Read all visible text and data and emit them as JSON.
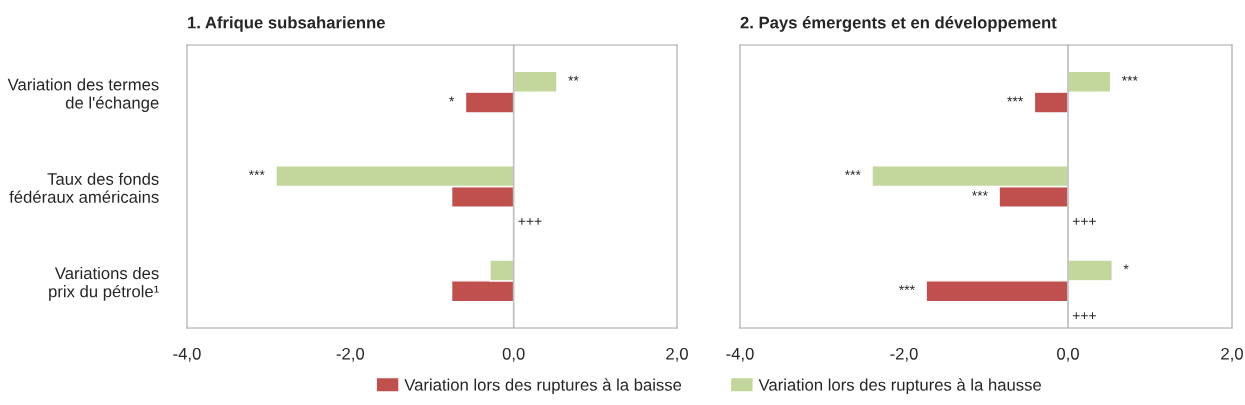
{
  "chart_data": [
    {
      "type": "bar",
      "orientation": "horizontal",
      "title": "1. Afrique subsaharienne",
      "categories": [
        "Variation des termes\nde l'échange",
        "Taux des fonds\nfédéraux américains",
        "Variations des\nprix du pétrole¹"
      ],
      "series": [
        {
          "name": "Variation lors des ruptures à la baisse",
          "color": "#c0504d",
          "values": [
            -0.59,
            -0.76,
            -0.76
          ],
          "value_labels": [
            "*",
            null,
            null
          ]
        },
        {
          "name": "Variation lors des ruptures à la hausse",
          "color": "#c3d69b",
          "values": [
            0.53,
            -2.91,
            -0.29
          ],
          "value_labels": [
            "**",
            "***",
            null
          ]
        }
      ],
      "xlim": [
        -4,
        2
      ],
      "xticks": [
        {
          "value": -4,
          "label": "-4,0"
        },
        {
          "value": -2,
          "label": "-2,0"
        },
        {
          "value": 0,
          "label": "0,0"
        },
        {
          "value": 2,
          "label": "2,0"
        }
      ],
      "ref_lines": [
        {
          "axis": "x",
          "value": 0,
          "color": "#bfbfbf"
        }
      ],
      "annotations": [
        "+++"
      ],
      "legend": "bottom"
    },
    {
      "type": "bar",
      "orientation": "horizontal",
      "title": "2. Pays émergents et en développement",
      "categories": [
        null,
        null,
        null
      ],
      "series": [
        {
          "color": "#c0504d",
          "values": [
            -0.41,
            -0.84,
            -1.73
          ],
          "value_labels": [
            "***",
            "***",
            "***"
          ]
        },
        {
          "color": "#c3d69b",
          "values": [
            0.52,
            -2.39,
            0.54
          ],
          "value_labels": [
            "***",
            "***",
            "*"
          ]
        }
      ],
      "xlim": [
        -4,
        2
      ],
      "xticks": [
        {
          "value": -4,
          "label": "-4,0"
        },
        {
          "value": -2,
          "label": "-2,0"
        },
        {
          "value": 0,
          "label": "0,0"
        },
        {
          "value": 2,
          "label": "2,0"
        }
      ],
      "ref_lines": [
        {
          "axis": "x",
          "value": 0,
          "color": "#bfbfbf"
        }
      ],
      "annotations": [
        "+++",
        "+++"
      ],
      "tick_labels": "x"
    }
  ]
}
